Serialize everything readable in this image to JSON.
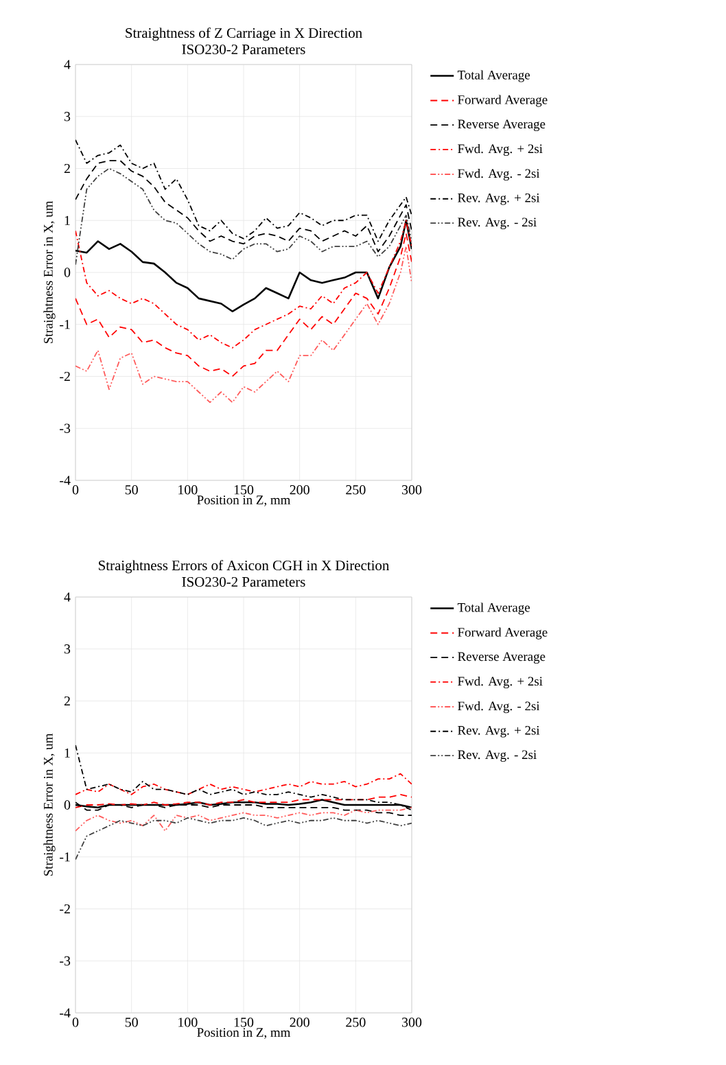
{
  "chart_data": [
    {
      "type": "line",
      "title": "Straightness of Z Carriage in X Direction",
      "subtitle": "ISO230-2 Parameters",
      "xlabel": "Position in Z, mm",
      "ylabel": "Straightness Error in X, um",
      "xlim": [
        0,
        300
      ],
      "ylim": [
        -4,
        4
      ],
      "xticks": [
        0,
        50,
        100,
        150,
        200,
        250,
        300
      ],
      "yticks": [
        -4,
        -3,
        -2,
        -1,
        0,
        1,
        2,
        3,
        4
      ],
      "grid": true,
      "legend": "right",
      "x": [
        0,
        10,
        20,
        30,
        40,
        50,
        60,
        70,
        80,
        90,
        100,
        110,
        120,
        130,
        140,
        150,
        160,
        170,
        180,
        190,
        200,
        210,
        220,
        230,
        240,
        250,
        260,
        270,
        280,
        290,
        295,
        300
      ],
      "series": [
        {
          "name": "Total Average",
          "color": "#000000",
          "line_style": "solid",
          "values": [
            0.42,
            0.38,
            0.6,
            0.45,
            0.55,
            0.4,
            0.2,
            0.17,
            0.0,
            -0.2,
            -0.3,
            -0.5,
            -0.55,
            -0.6,
            -0.75,
            -0.62,
            -0.5,
            -0.3,
            -0.4,
            -0.5,
            0,
            -0.15,
            -0.2,
            -0.15,
            -0.1,
            0,
            0,
            -0.5,
            0.1,
            0.5,
            1.0,
            0.45
          ]
        },
        {
          "name": "Forward Average",
          "color": "#ff0000",
          "line_style": "dashed",
          "values": [
            -0.5,
            -1.0,
            -0.9,
            -1.25,
            -1.05,
            -1.1,
            -1.35,
            -1.3,
            -1.45,
            -1.55,
            -1.6,
            -1.8,
            -1.9,
            -1.85,
            -2.0,
            -1.8,
            -1.75,
            -1.5,
            -1.5,
            -1.2,
            -0.9,
            -1.1,
            -0.85,
            -1.0,
            -0.7,
            -0.4,
            -0.5,
            -0.8,
            -0.3,
            0.3,
            0.75,
            0.2
          ]
        },
        {
          "name": "Reverse Average",
          "color": "#000000",
          "line_style": "dashed",
          "values": [
            1.4,
            1.8,
            2.1,
            2.15,
            2.15,
            1.95,
            1.85,
            1.65,
            1.35,
            1.2,
            1.05,
            0.8,
            0.6,
            0.7,
            0.6,
            0.55,
            0.7,
            0.75,
            0.7,
            0.6,
            0.85,
            0.8,
            0.6,
            0.7,
            0.8,
            0.7,
            0.9,
            0.4,
            0.7,
            1.1,
            1.3,
            0.8
          ]
        },
        {
          "name": "Fwd. Avg. + 2si",
          "color": "#ff0000",
          "line_style": "dashdot",
          "values": [
            0.8,
            -0.2,
            -0.45,
            -0.35,
            -0.5,
            -0.6,
            -0.5,
            -0.6,
            -0.8,
            -1.0,
            -1.1,
            -1.3,
            -1.2,
            -1.35,
            -1.45,
            -1.3,
            -1.1,
            -1.0,
            -0.9,
            -0.8,
            -0.65,
            -0.7,
            -0.45,
            -0.6,
            -0.3,
            -0.2,
            0,
            -0.4,
            0.1,
            0.6,
            1.0,
            0.5
          ]
        },
        {
          "name": "Fwd. Avg. - 2si",
          "color": "#ff5a5a",
          "line_style": "dashdotdot",
          "values": [
            -1.8,
            -1.9,
            -1.5,
            -2.25,
            -1.65,
            -1.55,
            -2.15,
            -2.0,
            -2.05,
            -2.1,
            -2.1,
            -2.3,
            -2.5,
            -2.3,
            -2.5,
            -2.2,
            -2.3,
            -2.1,
            -1.9,
            -2.1,
            -1.6,
            -1.6,
            -1.3,
            -1.5,
            -1.2,
            -0.9,
            -0.6,
            -1.0,
            -0.6,
            0,
            0.5,
            -0.2
          ]
        },
        {
          "name": "Rev. Avg. + 2si",
          "color": "#000000",
          "line_style": "dashdot",
          "values": [
            2.55,
            2.1,
            2.25,
            2.3,
            2.45,
            2.1,
            2.0,
            2.1,
            1.6,
            1.8,
            1.4,
            0.9,
            0.8,
            1.0,
            0.75,
            0.65,
            0.8,
            1.05,
            0.85,
            0.9,
            1.15,
            1.05,
            0.9,
            1.0,
            1.0,
            1.1,
            1.1,
            0.6,
            1.0,
            1.3,
            1.45,
            1.1
          ]
        },
        {
          "name": "Rev. Avg. - 2si",
          "color": "#404040",
          "line_style": "dashdotdot",
          "values": [
            0.15,
            1.6,
            1.85,
            2.0,
            1.9,
            1.75,
            1.6,
            1.2,
            1.0,
            0.95,
            0.75,
            0.55,
            0.4,
            0.35,
            0.25,
            0.45,
            0.55,
            0.55,
            0.4,
            0.45,
            0.7,
            0.6,
            0.4,
            0.5,
            0.5,
            0.5,
            0.6,
            0.3,
            0.5,
            0.9,
            1.1,
            0.6
          ]
        }
      ]
    },
    {
      "type": "line",
      "title": "Straightness Errors of Axicon CGH in X Direction",
      "subtitle": "ISO230-2 Parameters",
      "xlabel": "Position in Z, mm",
      "ylabel": "Straightness Error in X, um",
      "xlim": [
        0,
        300
      ],
      "ylim": [
        -4,
        4
      ],
      "xticks": [
        0,
        50,
        100,
        150,
        200,
        250,
        300
      ],
      "yticks": [
        -4,
        -3,
        -2,
        -1,
        0,
        1,
        2,
        3,
        4
      ],
      "grid": true,
      "legend": "right",
      "x": [
        0,
        10,
        20,
        30,
        40,
        50,
        60,
        70,
        80,
        90,
        100,
        110,
        120,
        130,
        140,
        150,
        160,
        170,
        180,
        190,
        200,
        210,
        220,
        230,
        240,
        250,
        260,
        270,
        280,
        290,
        300
      ],
      "series": [
        {
          "name": "Total Average",
          "color": "#000000",
          "line_style": "solid",
          "values": [
            0,
            -0.03,
            -0.05,
            0,
            0,
            0,
            0,
            0,
            0,
            0,
            0.02,
            0.05,
            0,
            0.02,
            0.05,
            0.05,
            0.05,
            0.02,
            0.02,
            0,
            0.02,
            0.05,
            0.1,
            0.05,
            0,
            0,
            0,
            0,
            0,
            0,
            -0.05
          ]
        },
        {
          "name": "Forward Average",
          "color": "#ff0000",
          "line_style": "dashed",
          "values": [
            -0.05,
            0,
            0,
            0.02,
            0,
            0.02,
            0,
            0.05,
            0,
            0.02,
            0.05,
            0.05,
            0,
            0.05,
            0.05,
            0.1,
            0.05,
            0.05,
            0.05,
            0.05,
            0.1,
            0.1,
            0.1,
            0.1,
            0.1,
            0.1,
            0.1,
            0.15,
            0.15,
            0.2,
            0.15
          ]
        },
        {
          "name": "Reverse Average",
          "color": "#000000",
          "line_style": "dashed",
          "values": [
            0.05,
            -0.1,
            -0.1,
            0,
            0,
            -0.05,
            0,
            0,
            -0.05,
            0,
            0,
            0,
            -0.05,
            0,
            0,
            0,
            0,
            -0.05,
            -0.05,
            -0.05,
            -0.05,
            -0.05,
            -0.05,
            -0.05,
            -0.1,
            -0.1,
            -0.1,
            -0.15,
            -0.15,
            -0.2,
            -0.2
          ]
        },
        {
          "name": "Fwd. Avg. + 2si",
          "color": "#ff0000",
          "line_style": "dashdot",
          "values": [
            0.2,
            0.3,
            0.25,
            0.4,
            0.3,
            0.2,
            0.35,
            0.4,
            0.3,
            0.25,
            0.2,
            0.3,
            0.4,
            0.3,
            0.35,
            0.3,
            0.25,
            0.3,
            0.35,
            0.4,
            0.35,
            0.45,
            0.4,
            0.4,
            0.45,
            0.35,
            0.4,
            0.5,
            0.5,
            0.6,
            0.4
          ]
        },
        {
          "name": "Fwd. Avg. - 2si",
          "color": "#ff5a5a",
          "line_style": "dashdotdot",
          "values": [
            -0.5,
            -0.3,
            -0.2,
            -0.3,
            -0.35,
            -0.3,
            -0.4,
            -0.2,
            -0.5,
            -0.2,
            -0.25,
            -0.2,
            -0.3,
            -0.25,
            -0.2,
            -0.15,
            -0.2,
            -0.2,
            -0.25,
            -0.2,
            -0.15,
            -0.2,
            -0.15,
            -0.15,
            -0.2,
            -0.1,
            -0.15,
            -0.1,
            -0.1,
            -0.1,
            -0.05
          ]
        },
        {
          "name": "Rev. Avg. + 2si",
          "color": "#000000",
          "line_style": "dashdot",
          "values": [
            1.15,
            0.3,
            0.35,
            0.4,
            0.3,
            0.25,
            0.45,
            0.3,
            0.3,
            0.25,
            0.2,
            0.3,
            0.2,
            0.25,
            0.3,
            0.2,
            0.25,
            0.2,
            0.2,
            0.25,
            0.2,
            0.15,
            0.2,
            0.15,
            0.1,
            0.1,
            0.1,
            0.05,
            0.05,
            0,
            -0.1
          ]
        },
        {
          "name": "Rev. Avg. - 2si",
          "color": "#404040",
          "line_style": "dashdotdot",
          "values": [
            -1.05,
            -0.6,
            -0.5,
            -0.4,
            -0.3,
            -0.35,
            -0.4,
            -0.3,
            -0.3,
            -0.35,
            -0.25,
            -0.3,
            -0.35,
            -0.3,
            -0.3,
            -0.25,
            -0.3,
            -0.4,
            -0.35,
            -0.3,
            -0.35,
            -0.3,
            -0.3,
            -0.25,
            -0.3,
            -0.3,
            -0.35,
            -0.3,
            -0.35,
            -0.4,
            -0.35
          ]
        }
      ]
    }
  ]
}
